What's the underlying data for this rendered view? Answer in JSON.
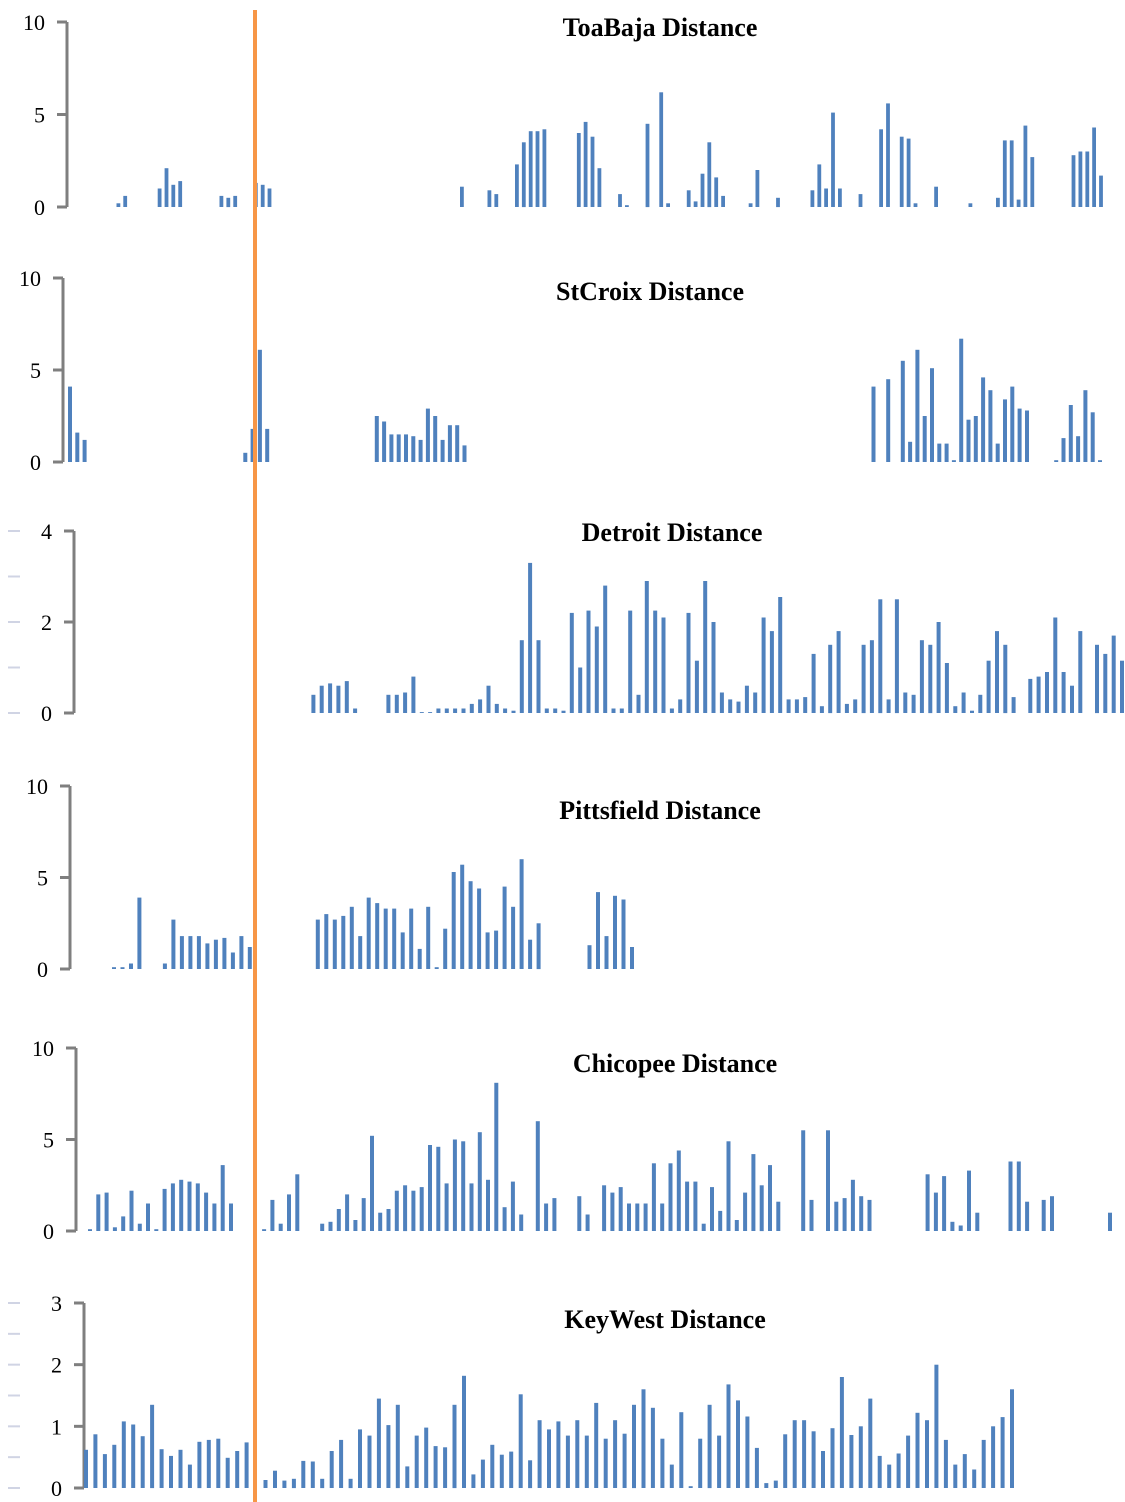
{
  "colors": {
    "bar": "#4f81bd",
    "axis": "#7f7f7f",
    "marker": "#f79646"
  },
  "chart_data": [
    {
      "type": "bar",
      "title": "ToaBaja Distance",
      "ylim": [
        0,
        10
      ],
      "yticks": [
        0,
        5,
        10
      ],
      "values": [
        0,
        0,
        0,
        0,
        0,
        0.2,
        0.6,
        0,
        0,
        0,
        0,
        1.0,
        2.1,
        1.2,
        1.4,
        0,
        0,
        0,
        0,
        0,
        0.6,
        0.5,
        0.6,
        0,
        0,
        1.3,
        1.2,
        1.0,
        0,
        0,
        0,
        0,
        0,
        0,
        0,
        0,
        0,
        0,
        0,
        0,
        0,
        0,
        0,
        0,
        0,
        0,
        0,
        0,
        0,
        0,
        0,
        0,
        0,
        0,
        0,
        1.1,
        0,
        0,
        0,
        0.9,
        0.7,
        0,
        0,
        2.3,
        3.5,
        4.1,
        4.1,
        4.2,
        0,
        0,
        0,
        0,
        4.0,
        4.6,
        3.8,
        2.1,
        0,
        0,
        0.7,
        0.1,
        0,
        0,
        4.5,
        0,
        6.2,
        0.2,
        0,
        0,
        0.9,
        0.3,
        1.8,
        3.5,
        1.6,
        0.6,
        0,
        0,
        0,
        0.2,
        2.0,
        0,
        0,
        0.5,
        0,
        0,
        0,
        0,
        0.9,
        2.3,
        1.0,
        5.1,
        1.0,
        0,
        0,
        0.7,
        0,
        0,
        4.2,
        5.6,
        0,
        3.8,
        3.7,
        0.2,
        0,
        0,
        1.1,
        0,
        0,
        0,
        0,
        0.2,
        0,
        0,
        0,
        0.5,
        3.6,
        3.6,
        0.4,
        4.4,
        2.7,
        0,
        0,
        0,
        0,
        0,
        2.8,
        3.0,
        3.0,
        4.3,
        1.7
      ]
    },
    {
      "type": "bar",
      "title": "StCroix Distance",
      "ylim": [
        0,
        10
      ],
      "yticks": [
        0,
        5,
        10
      ],
      "values": [
        4.1,
        1.6,
        1.2,
        0,
        0,
        0,
        0,
        0,
        0,
        0,
        0,
        0,
        0,
        0,
        0,
        0,
        0,
        0,
        0,
        0,
        0,
        0,
        0,
        0,
        0.5,
        1.8,
        6.1,
        1.8,
        0,
        0,
        0,
        0,
        0,
        0,
        0,
        0,
        0,
        0,
        0,
        0,
        0,
        0,
        2.5,
        2.2,
        1.5,
        1.5,
        1.5,
        1.4,
        1.2,
        2.9,
        2.5,
        1.2,
        2.0,
        2.0,
        0.9,
        0,
        0,
        0,
        0,
        0,
        0,
        0,
        0,
        0,
        0,
        0,
        0,
        0,
        0,
        0,
        0,
        0,
        0,
        0,
        0,
        0,
        0,
        0,
        0,
        0,
        0,
        0,
        0,
        0,
        0,
        0,
        0,
        0,
        0,
        0,
        0,
        0,
        0,
        0,
        0,
        0,
        0,
        0,
        0,
        0,
        0,
        0,
        0,
        0,
        0,
        0,
        0,
        0,
        0,
        0,
        4.1,
        0,
        4.5,
        0,
        5.5,
        1.1,
        6.1,
        2.5,
        5.1,
        1.0,
        1.0,
        0.1,
        6.7,
        2.3,
        2.5,
        4.6,
        3.9,
        1.0,
        3.4,
        4.1,
        2.9,
        2.8,
        0,
        0,
        0,
        0.1,
        1.3,
        3.1,
        1.4,
        3.9,
        2.7,
        0.1
      ]
    },
    {
      "type": "bar",
      "title": "Detroit Distance",
      "ylim": [
        0,
        4
      ],
      "yticks": [
        0,
        2,
        4
      ],
      "values": [
        0,
        0,
        0,
        0,
        0,
        0,
        0,
        0,
        0,
        0,
        0,
        0,
        0,
        0,
        0,
        0,
        0,
        0,
        0,
        0,
        0,
        0,
        0,
        0,
        0,
        0,
        0,
        0,
        0.4,
        0.6,
        0.65,
        0.6,
        0.7,
        0.1,
        0,
        0,
        0,
        0.4,
        0.4,
        0.45,
        0.8,
        0.02,
        0.02,
        0.1,
        0.1,
        0.1,
        0.1,
        0.2,
        0.3,
        0.6,
        0.2,
        0.1,
        0.05,
        1.6,
        3.3,
        1.6,
        0.1,
        0.1,
        0.05,
        2.2,
        1.0,
        2.25,
        1.9,
        2.8,
        0.1,
        0.1,
        2.25,
        0.4,
        2.9,
        2.25,
        2.1,
        0.1,
        0.3,
        2.2,
        1.15,
        2.9,
        2.0,
        0.45,
        0.3,
        0.25,
        0.6,
        0.45,
        2.1,
        1.8,
        2.55,
        0.3,
        0.3,
        0.35,
        1.3,
        0.15,
        1.5,
        1.8,
        0.2,
        0.3,
        1.5,
        1.6,
        2.5,
        0.3,
        2.5,
        0.45,
        0.4,
        1.6,
        1.5,
        2.0,
        1.1,
        0.15,
        0.45,
        0.05,
        0.4,
        1.15,
        1.8,
        1.5,
        0.35,
        0,
        0.75,
        0.8,
        0.9,
        2.1,
        0.9,
        0.6,
        1.8,
        0,
        1.5,
        1.3,
        1.7,
        1.15
      ]
    },
    {
      "type": "bar",
      "title": "Pittsfield Distance",
      "ylim": [
        0,
        10
      ],
      "yticks": [
        0,
        5,
        10
      ],
      "values": [
        0,
        0,
        0,
        0,
        0.1,
        0.1,
        0.3,
        3.9,
        0,
        0,
        0.3,
        2.7,
        1.8,
        1.8,
        1.8,
        1.4,
        1.6,
        1.7,
        0.9,
        1.8,
        1.2,
        0,
        0,
        0,
        0,
        0,
        0,
        0,
        2.7,
        3.0,
        2.7,
        2.9,
        3.4,
        1.8,
        3.9,
        3.6,
        3.3,
        3.3,
        2.0,
        3.3,
        1.1,
        3.4,
        0.1,
        2.2,
        5.3,
        5.7,
        4.8,
        4.4,
        2.0,
        2.1,
        4.5,
        3.4,
        6.0,
        1.6,
        2.5,
        0,
        0,
        0,
        0,
        0,
        1.3,
        4.2,
        1.8,
        4.0,
        3.8,
        1.2
      ]
    },
    {
      "type": "bar",
      "title": "Chicopee Distance",
      "ylim": [
        0,
        10
      ],
      "yticks": [
        0,
        5,
        10
      ],
      "values": [
        0.1,
        2.0,
        2.1,
        0.2,
        0.8,
        2.2,
        0.4,
        1.5,
        0.1,
        2.3,
        2.6,
        2.8,
        2.7,
        2.6,
        2.1,
        1.5,
        3.6,
        1.5,
        0,
        0,
        0,
        0.1,
        1.7,
        0.4,
        2.0,
        3.1,
        0,
        0,
        0.4,
        0.5,
        1.2,
        2.0,
        0.6,
        1.8,
        5.2,
        1.0,
        1.2,
        2.2,
        2.5,
        2.2,
        2.4,
        4.7,
        4.6,
        2.6,
        5.0,
        4.9,
        2.6,
        5.4,
        2.8,
        8.1,
        1.3,
        2.7,
        0.9,
        0,
        6.0,
        1.5,
        1.8,
        0,
        0,
        1.9,
        0.9,
        0,
        2.5,
        2.1,
        2.4,
        1.5,
        1.5,
        1.5,
        3.7,
        1.5,
        3.7,
        4.4,
        2.7,
        2.7,
        0.4,
        2.4,
        1.1,
        4.9,
        0.6,
        2.1,
        4.2,
        2.5,
        3.6,
        1.6,
        0,
        0,
        5.5,
        1.7,
        0,
        5.5,
        1.6,
        1.8,
        2.8,
        1.9,
        1.7,
        0,
        0,
        0,
        0,
        0,
        0,
        3.1,
        2.1,
        3.0,
        0.5,
        0.3,
        3.3,
        1.0,
        0,
        0,
        0,
        3.8,
        3.8,
        1.6,
        0,
        1.7,
        1.9,
        0,
        0,
        0,
        0,
        0,
        0,
        1.0
      ]
    },
    {
      "type": "bar",
      "title": "KeyWest Distance",
      "ylim": [
        0,
        3
      ],
      "yticks": [
        0,
        1,
        2,
        3
      ],
      "values": [
        0.62,
        0.87,
        0.55,
        0.7,
        1.08,
        1.03,
        0.84,
        1.35,
        0.63,
        0.52,
        0.62,
        0.38,
        0.75,
        0.78,
        0.8,
        0.49,
        0.6,
        0.74,
        0,
        0.13,
        0.28,
        0.12,
        0.15,
        0.44,
        0.43,
        0.15,
        0.6,
        0.78,
        0.15,
        0.95,
        0.85,
        1.45,
        1.02,
        1.35,
        0.35,
        0.85,
        0.98,
        0.68,
        0.66,
        1.35,
        1.82,
        0.22,
        0.46,
        0.7,
        0.54,
        0.59,
        1.52,
        0.45,
        1.1,
        0.95,
        1.08,
        0.85,
        1.1,
        0.85,
        1.38,
        0.8,
        1.1,
        0.88,
        1.35,
        1.6,
        1.3,
        0.8,
        0.38,
        1.23,
        0.03,
        0.8,
        1.35,
        0.85,
        1.68,
        1.42,
        1.16,
        0.65,
        0.08,
        0.12,
        0.87,
        1.1,
        1.1,
        0.92,
        0.6,
        0.97,
        1.8,
        0.86,
        1.0,
        1.45,
        0.52,
        0.38,
        0.56,
        0.85,
        1.22,
        1.1,
        2.0,
        0.78,
        0.38,
        0.55,
        0.3,
        0.78,
        1.0,
        1.15,
        1.6
      ]
    }
  ]
}
